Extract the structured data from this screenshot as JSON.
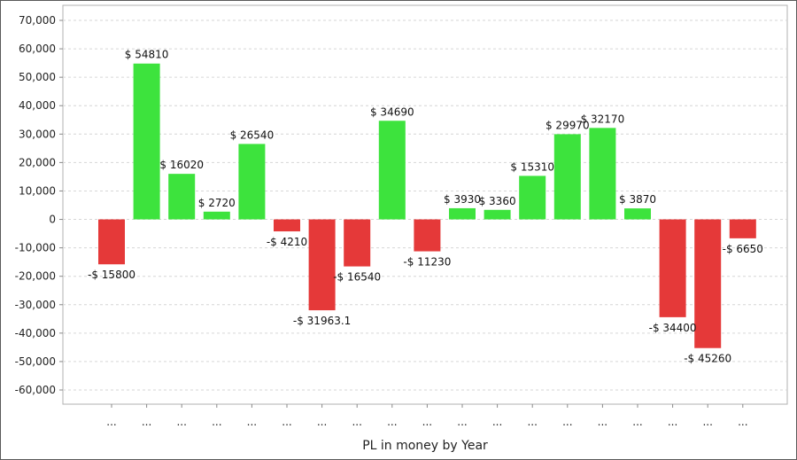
{
  "chart_data": {
    "type": "bar",
    "xlabel": "PL in money by Year",
    "ylabel": "",
    "ylim": [
      -65000,
      70000
    ],
    "yticks": [
      70000,
      60000,
      50000,
      40000,
      30000,
      20000,
      10000,
      0,
      -10000,
      -20000,
      -30000,
      -40000,
      -50000,
      -60000
    ],
    "ytick_labels": [
      "70,000",
      "60,000",
      "50,000",
      "40,000",
      "30,000",
      "20,000",
      "10,000",
      "0",
      "-10,000",
      "-20,000",
      "-30,000",
      "-40,000",
      "-50,000",
      "-60,000"
    ],
    "grid": true,
    "positive_color": "#3de33d",
    "negative_color": "#e53939",
    "categories": [
      "...",
      "...",
      "...",
      "...",
      "...",
      "...",
      "...",
      "...",
      "...",
      "...",
      "...",
      "...",
      "...",
      "...",
      "...",
      "...",
      "...",
      "...",
      "..."
    ],
    "values": [
      -15800,
      54810,
      16020,
      2720,
      26540,
      -4210,
      -31963.1,
      -16540,
      34690,
      -11230,
      3930,
      3360,
      15310,
      29970,
      32170,
      3870,
      -34400,
      -45260,
      -6650
    ],
    "data_labels": [
      "-$ 15800",
      "$ 54810",
      "$ 16020",
      "$ 2720",
      "$ 26540",
      "-$ 4210",
      "-$ 31963.1",
      "-$ 16540",
      "$ 34690",
      "-$ 11230",
      "$ 3930",
      "$ 3360",
      "$ 15310",
      "$ 29970",
      "$ 32170",
      "$ 3870",
      "-$ 34400",
      "-$ 45260",
      "-$ 6650"
    ]
  }
}
